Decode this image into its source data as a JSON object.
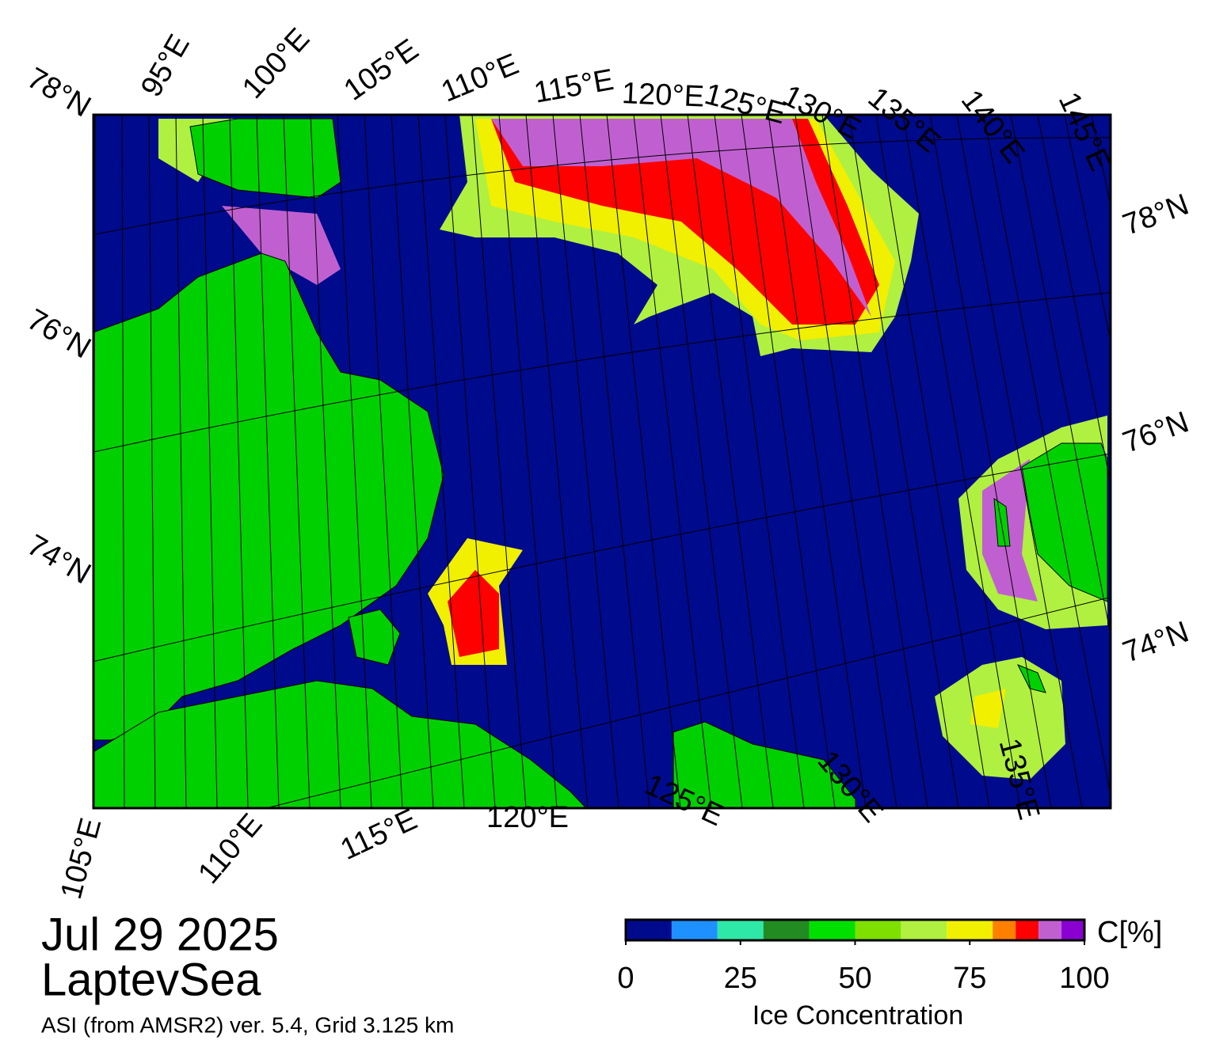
{
  "header": {
    "date": "Jul 29 2025",
    "region": "LaptevSea",
    "source": "ASI (from AMSR2) ver. 5.4,  Grid 3.125 km"
  },
  "map": {
    "top_lon_labels": [
      "95°E",
      "100°E",
      "105°E",
      "110°E",
      "115°E",
      "120°E",
      "125°E",
      "130°E",
      "135°E",
      "140°E",
      "145°E"
    ],
    "bottom_lon_labels": [
      "105°E",
      "110°E",
      "115°E",
      "120°E",
      "125°E",
      "130°E",
      "135°E"
    ],
    "left_lat_labels": [
      "78°N",
      "76°N",
      "74°N"
    ],
    "right_lat_labels": [
      "78°N",
      "76°N",
      "74°N"
    ]
  },
  "colorbar": {
    "label": "Ice Concentration",
    "unit": "C[%]",
    "bounds": [
      0,
      10,
      20,
      30,
      40,
      50,
      60,
      70,
      80,
      85,
      90,
      95,
      100
    ],
    "colors": [
      "#000a8c",
      "#1e90ff",
      "#2ee8a8",
      "#228b22",
      "#00e000",
      "#7fe000",
      "#b0f040",
      "#f0f000",
      "#ff8000",
      "#ff0000",
      "#c060d0",
      "#8a00d0"
    ],
    "ticks": [
      0,
      25,
      50,
      75,
      100
    ]
  }
}
